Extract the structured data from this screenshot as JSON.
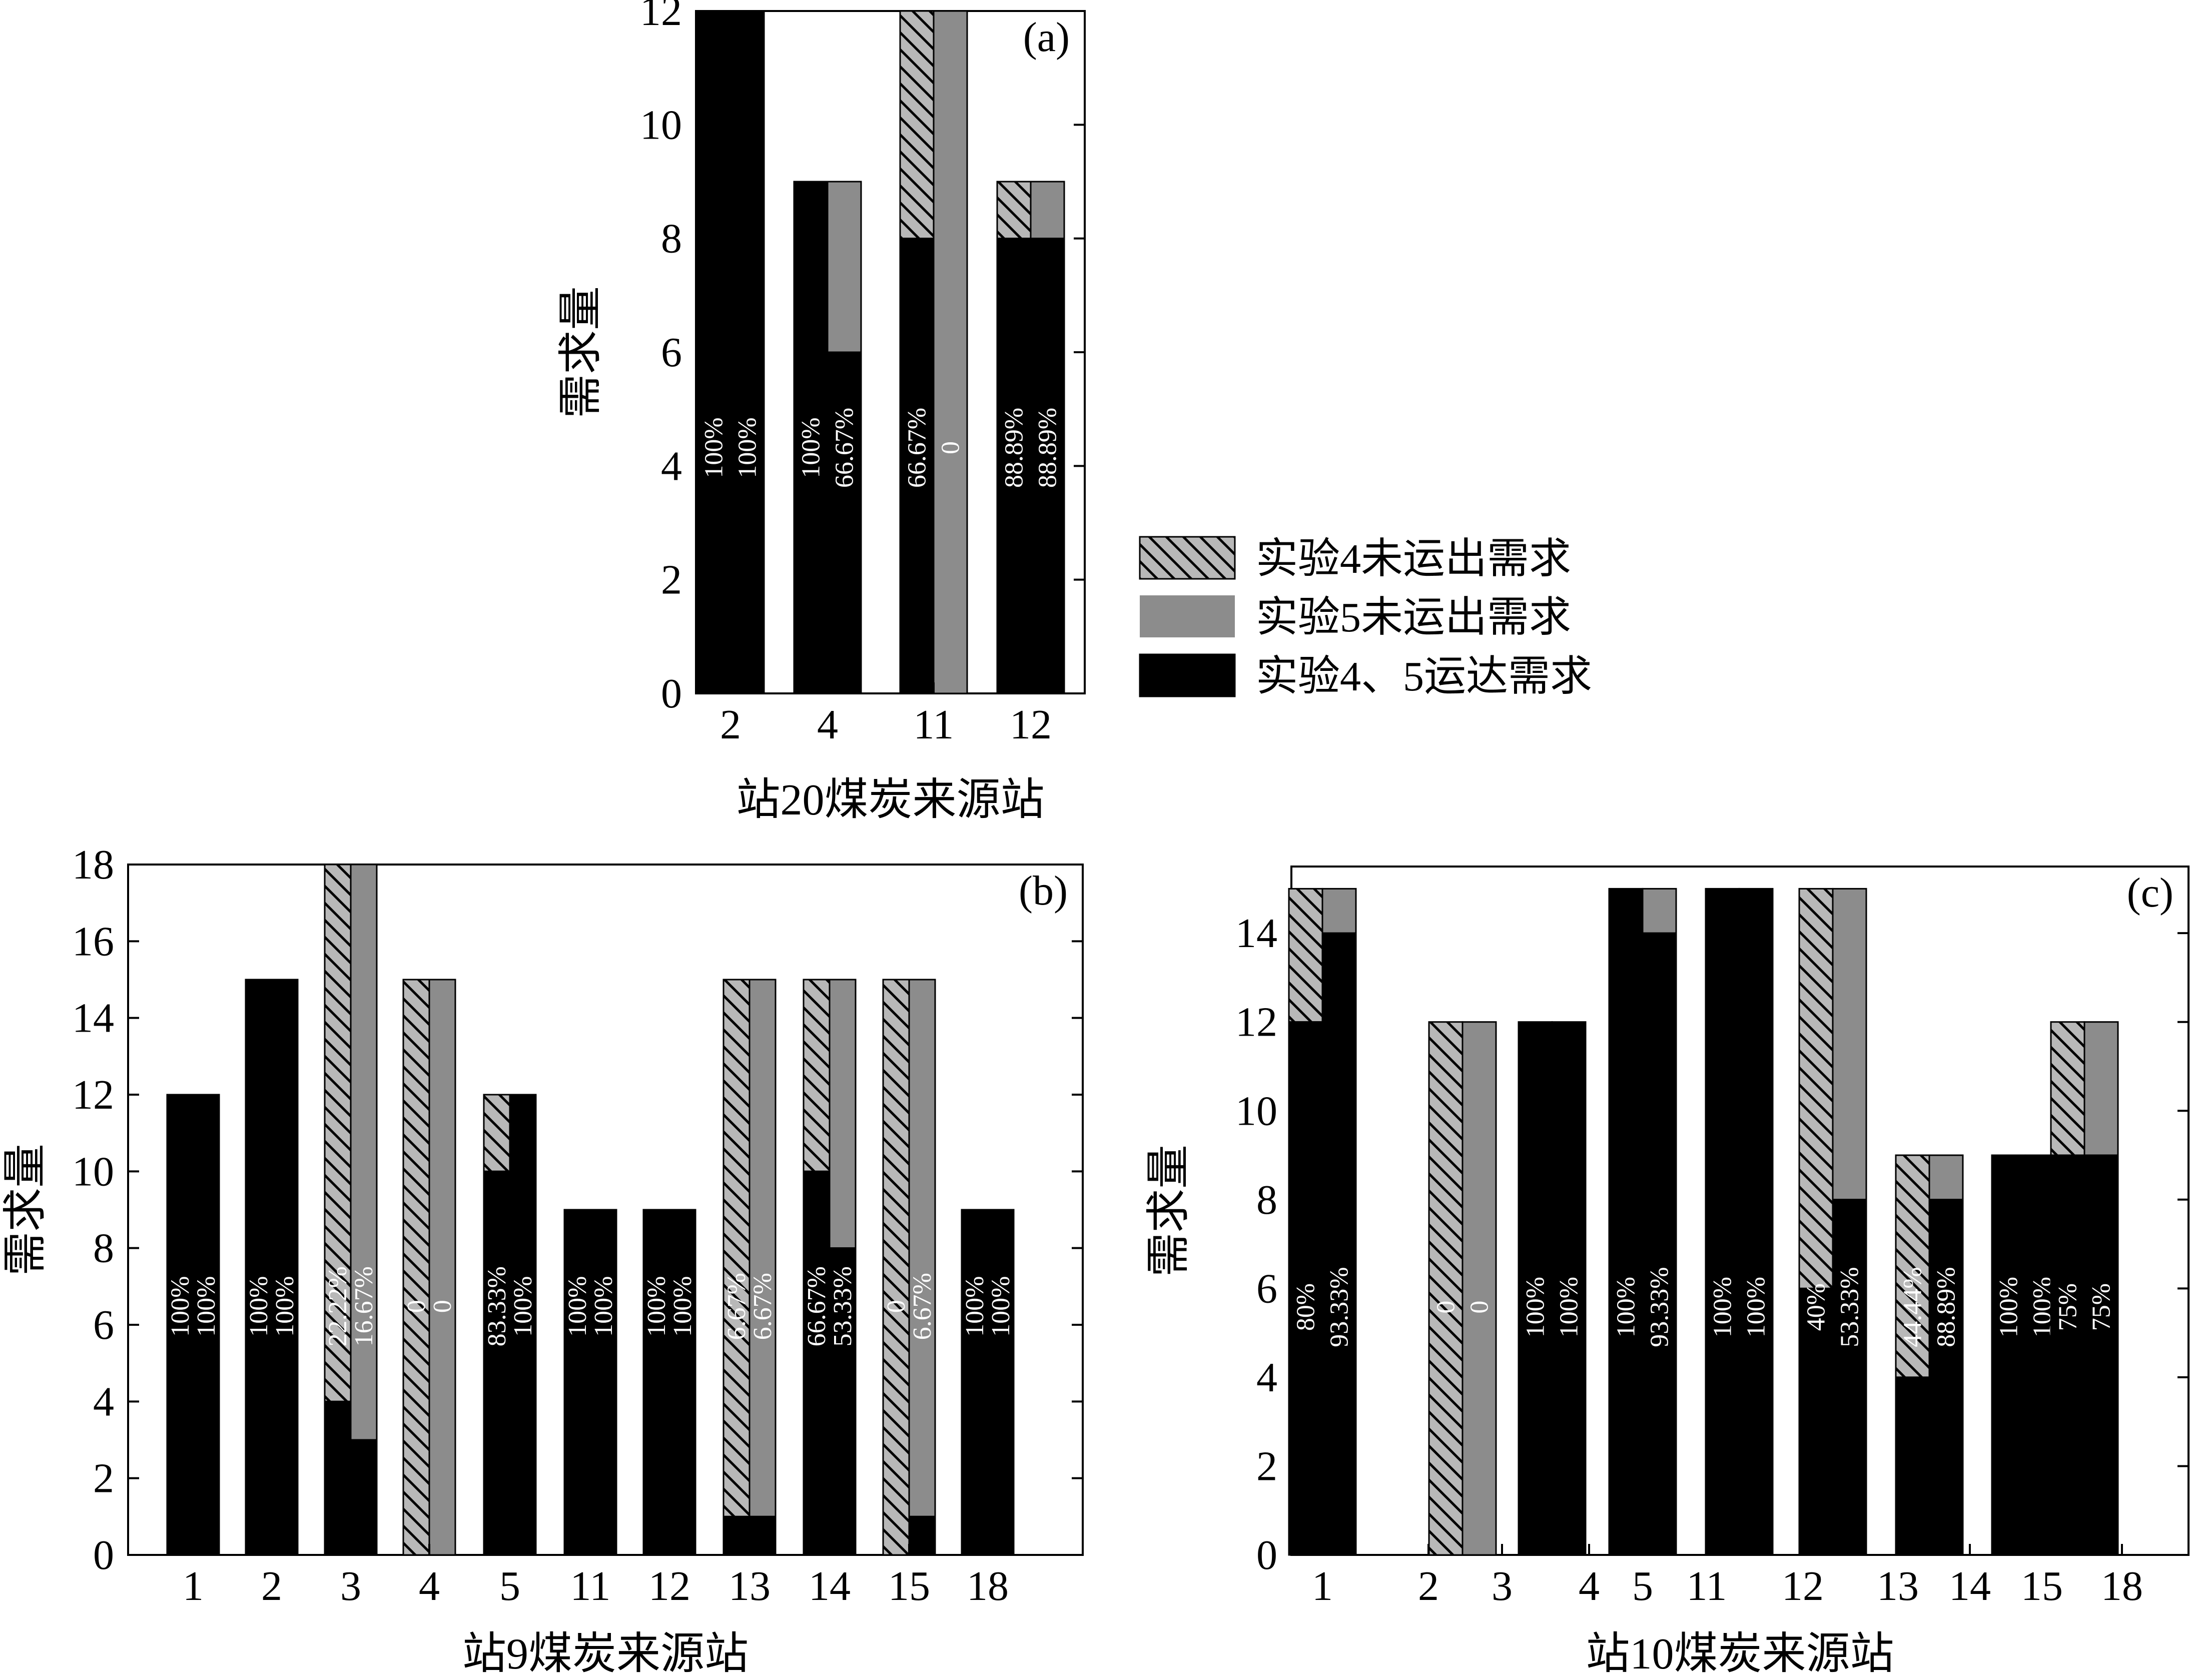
{
  "figure": {
    "series_legend": [
      {
        "key": "unmet4",
        "label": "实验4未运出需求"
      },
      {
        "key": "unmet5",
        "label": "实验5未运出需求"
      },
      {
        "key": "met",
        "label": "实验4、5运达需求"
      }
    ],
    "colors": {
      "met": "#000000",
      "unmet5": "#8c8c8c",
      "unmet4_fill": "#b8b8b8",
      "hatch": "#000000",
      "label_text": "#ffffff"
    }
  },
  "chart_data": [
    {
      "id": "a",
      "type": "bar",
      "title": "(a)",
      "xlabel": "站20煤炭来源站",
      "ylabel": "需求量",
      "ylim": [
        0,
        12
      ],
      "yticks": [
        0,
        2,
        4,
        6,
        8,
        10,
        12
      ],
      "categories": [
        "2",
        "4",
        "11",
        "12"
      ],
      "series": [
        {
          "name": "实验4",
          "demand": [
            12,
            9,
            12,
            9
          ],
          "delivered": [
            12,
            9,
            8,
            8
          ],
          "labels": [
            "100%",
            "100%",
            "66.67%",
            "88.89%"
          ]
        },
        {
          "name": "实验5",
          "demand": [
            12,
            9,
            12,
            9
          ],
          "delivered": [
            12,
            6,
            0,
            8
          ],
          "labels": [
            "100%",
            "66.67%",
            "0",
            "88.89%"
          ]
        }
      ]
    },
    {
      "id": "b",
      "type": "bar",
      "title": "(b)",
      "xlabel": "站9煤炭来源站",
      "ylabel": "需求量",
      "ylim": [
        0,
        18
      ],
      "yticks": [
        0,
        2,
        4,
        6,
        8,
        10,
        12,
        14,
        16,
        18
      ],
      "categories": [
        "1",
        "2",
        "3",
        "4",
        "5",
        "11",
        "12",
        "13",
        "14",
        "15",
        "18"
      ],
      "series": [
        {
          "name": "实验4",
          "demand": [
            12,
            15,
            18,
            15,
            12,
            9,
            9,
            15,
            15,
            15,
            9
          ],
          "delivered": [
            12,
            15,
            4,
            0,
            10,
            9,
            9,
            1,
            10,
            0,
            9
          ],
          "labels": [
            "100%",
            "100%",
            "22.22%",
            "0",
            "83.33%",
            "100%",
            "100%",
            "6.67%",
            "66.67%",
            "0",
            "100%"
          ]
        },
        {
          "name": "实验5",
          "demand": [
            12,
            15,
            18,
            15,
            12,
            9,
            9,
            15,
            15,
            15,
            9
          ],
          "delivered": [
            12,
            15,
            3,
            0,
            12,
            9,
            9,
            1,
            8,
            1,
            9
          ],
          "labels": [
            "100%",
            "100%",
            "16.67%",
            "0",
            "100%",
            "100%",
            "100%",
            "6.67%",
            "53.33%",
            "6.67%",
            "100%"
          ]
        }
      ]
    },
    {
      "id": "c",
      "type": "bar",
      "title": "(c)",
      "xlabel": "站10煤炭来源站",
      "ylabel": "需求量",
      "ylim": [
        0,
        15.5
      ],
      "yticks": [
        0,
        2,
        4,
        6,
        8,
        10,
        12,
        14
      ],
      "categories": [
        "1",
        "2",
        "3",
        "4",
        "5",
        "11",
        "12",
        "13",
        "14",
        "15",
        "18"
      ],
      "bar_slots": [
        0,
        1,
        2,
        3,
        4,
        5,
        6,
        7
      ],
      "tick_slots": [
        0,
        1,
        2,
        3,
        4,
        5,
        6,
        7,
        8,
        9,
        10
      ],
      "series": [
        {
          "name": "实验4",
          "demand": [
            15,
            12,
            12,
            15,
            15,
            15,
            9,
            9,
            12
          ],
          "delivered": [
            12,
            0,
            12,
            15,
            15,
            6,
            4,
            9,
            9
          ],
          "labels": [
            "80%",
            "0",
            "100%",
            "100%",
            "100%",
            "40%",
            "44.44%",
            "100%",
            "75%"
          ]
        },
        {
          "name": "实验5",
          "demand": [
            15,
            12,
            12,
            15,
            15,
            15,
            9,
            9,
            12
          ],
          "delivered": [
            14,
            0,
            12,
            14,
            15,
            8,
            8,
            9,
            9
          ],
          "labels": [
            "93.33%",
            "0",
            "100%",
            "93.33%",
            "100%",
            "53.33%",
            "88.89%",
            "100%",
            "75%"
          ]
        }
      ]
    }
  ]
}
